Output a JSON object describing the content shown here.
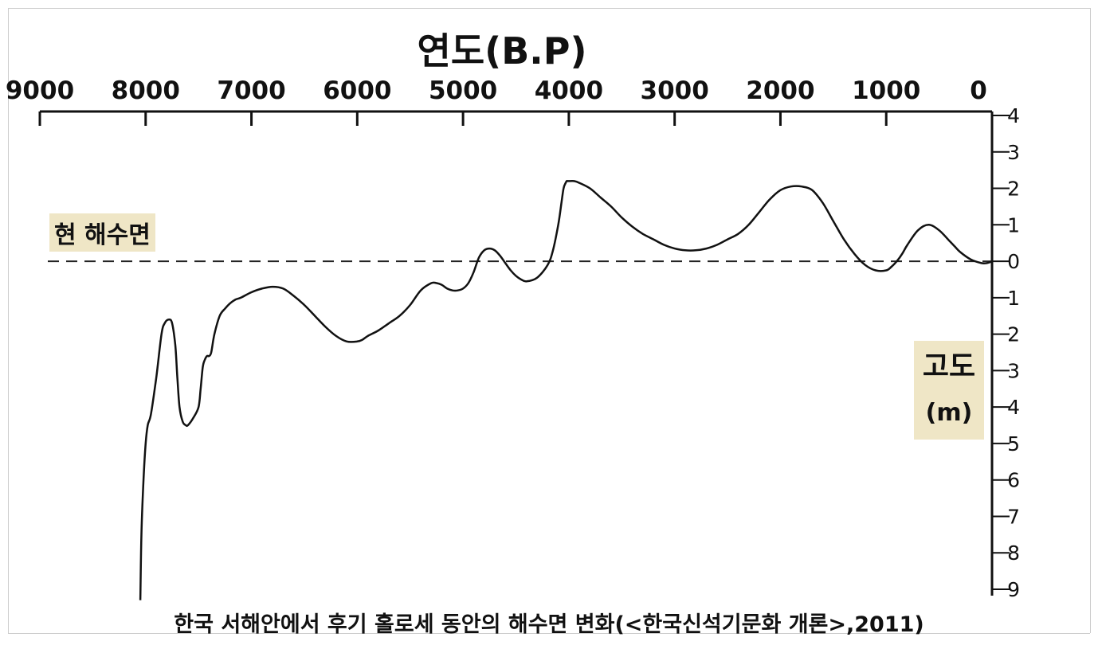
{
  "chart_data": {
    "type": "line",
    "title": "연도(B.P)",
    "xlabel": "연도(B.P)",
    "ylabel": "고도",
    "ylabel_unit": "(m)",
    "reference_line_label": "현 해수면",
    "caption": "한국 서해안에서 후기 홀로세 동안의 해수면 변화(<한국신석기문화 개론>,2011)",
    "x_reversed": true,
    "xlim": [
      9000,
      0
    ],
    "ylim": [
      -9,
      4
    ],
    "x_ticks": [
      "9000",
      "8000",
      "7000",
      "6000",
      "5000",
      "4000",
      "3000",
      "2000",
      "1000",
      "0"
    ],
    "y_ticks": [
      "4",
      "3",
      "2",
      "1",
      "0",
      "-1",
      "-2",
      "-3",
      "-4",
      "-5",
      "-6",
      "-7",
      "-8",
      "-9"
    ],
    "reference_line_y": 0,
    "grid": false,
    "colors": {
      "line": "#111111",
      "label_bg": "#efe6c6"
    },
    "series": [
      {
        "x": [
          8050,
          8040,
          8020,
          8000,
          7980,
          7950,
          7900,
          7850,
          7820,
          7780,
          7750,
          7720,
          7700,
          7680,
          7650,
          7620,
          7600,
          7550,
          7500,
          7480,
          7460,
          7440,
          7420,
          7400,
          7380,
          7350,
          7300,
          7250,
          7200,
          7150,
          7100,
          7000,
          6900,
          6800,
          6700,
          6600,
          6500,
          6400,
          6300,
          6200,
          6100,
          6000,
          5950,
          5900,
          5800,
          5700,
          5600,
          5500,
          5400,
          5300,
          5250,
          5200,
          5150,
          5100,
          5050,
          5000,
          4950,
          4900,
          4850,
          4800,
          4750,
          4700,
          4650,
          4600,
          4550,
          4500,
          4450,
          4400,
          4300,
          4200,
          4150,
          4100,
          4070,
          4050,
          4030,
          4020,
          4010,
          4000,
          3950,
          3900,
          3800,
          3700,
          3600,
          3500,
          3400,
          3300,
          3200,
          3100,
          3000,
          2900,
          2800,
          2700,
          2600,
          2500,
          2400,
          2300,
          2200,
          2100,
          2000,
          1900,
          1800,
          1700,
          1600,
          1500,
          1400,
          1300,
          1200,
          1100,
          1000,
          950,
          900,
          850,
          800,
          700,
          600,
          500,
          400,
          350,
          300,
          200,
          100,
          50,
          0
        ],
        "y": [
          -9.3,
          -7.5,
          -6.0,
          -5.0,
          -4.5,
          -4.2,
          -3.2,
          -2.0,
          -1.7,
          -1.6,
          -1.7,
          -2.3,
          -3.2,
          -4.0,
          -4.4,
          -4.5,
          -4.5,
          -4.3,
          -4.0,
          -3.5,
          -2.9,
          -2.7,
          -2.6,
          -2.6,
          -2.5,
          -2.0,
          -1.5,
          -1.3,
          -1.15,
          -1.05,
          -1.0,
          -0.85,
          -0.75,
          -0.7,
          -0.75,
          -0.95,
          -1.2,
          -1.5,
          -1.8,
          -2.05,
          -2.2,
          -2.2,
          -2.15,
          -2.05,
          -1.9,
          -1.7,
          -1.5,
          -1.2,
          -0.8,
          -0.6,
          -0.6,
          -0.65,
          -0.75,
          -0.8,
          -0.8,
          -0.75,
          -0.6,
          -0.3,
          0.1,
          0.3,
          0.35,
          0.3,
          0.15,
          -0.05,
          -0.25,
          -0.4,
          -0.5,
          -0.55,
          -0.45,
          -0.1,
          0.3,
          1.0,
          1.6,
          2.0,
          2.15,
          2.2,
          2.2,
          2.2,
          2.2,
          2.15,
          2.0,
          1.75,
          1.5,
          1.2,
          0.95,
          0.75,
          0.6,
          0.45,
          0.35,
          0.3,
          0.3,
          0.35,
          0.45,
          0.6,
          0.75,
          1.0,
          1.35,
          1.7,
          1.95,
          2.05,
          2.05,
          1.95,
          1.6,
          1.1,
          0.6,
          0.2,
          -0.1,
          -0.25,
          -0.25,
          -0.15,
          0.0,
          0.2,
          0.45,
          0.85,
          1.0,
          0.85,
          0.55,
          0.4,
          0.25,
          0.05,
          -0.05,
          -0.05,
          0.0
        ]
      }
    ]
  }
}
